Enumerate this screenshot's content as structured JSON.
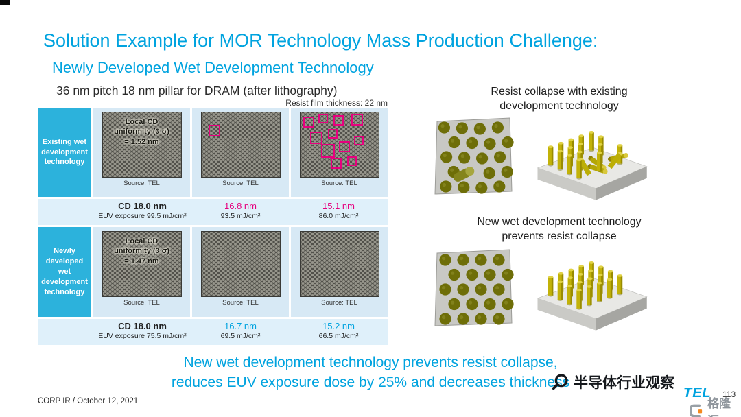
{
  "colors": {
    "accent_cyan": "#00A3DF",
    "sidebar_cyan": "#2CB2DC",
    "magenta": "#E6007E",
    "table_bg_light": "#d7e9f5",
    "data_band_bg": "#dff0fa",
    "pillar_yellow": "#c2b208"
  },
  "header": {
    "title": "Solution Example for MOR Technology Mass Production Challenge:",
    "subtitle": "Newly Developed Wet Development Technology"
  },
  "left_section": {
    "heading": "36 nm pitch 18 nm pillar for DRAM (after lithography)",
    "note": "Resist film thickness: 22 nm"
  },
  "table": {
    "groups": [
      {
        "label": "Existing wet development technology",
        "overlay": "Local CD\nuniformity (3 σ)\n= 1.52 nm",
        "source": "Source: TEL",
        "cells": [
          {
            "value": "CD 18.0 nm",
            "dose": "EUV exposure 99.5 mJ/cm²"
          },
          {
            "value": "16.8 nm",
            "dose": "93.5 mJ/cm²"
          },
          {
            "value": "15.1 nm",
            "dose": "86.0 mJ/cm²"
          }
        ]
      },
      {
        "label": "Newly developed wet development technology",
        "overlay": "Local CD\nuniformity (3 σ)\n= 1.47 nm",
        "source": "Source: TEL",
        "cells": [
          {
            "value": "CD 18.0 nm",
            "dose": "EUV exposure 75.5 mJ/cm²"
          },
          {
            "value": "16.7 nm",
            "dose": "69.5 mJ/cm²"
          },
          {
            "value": "15.2 nm",
            "dose": "66.5 mJ/cm²"
          }
        ]
      }
    ]
  },
  "right_panel": {
    "caption_top": "Resist collapse with existing\ndevelopment technology",
    "caption_bottom": "New wet development technology\nprevents resist collapse"
  },
  "conclusion": {
    "line1": "New wet development technology prevents resist collapse,",
    "line2": "reduces EUV exposure dose by 25% and decreases thickness"
  },
  "footer": {
    "left_text": "CORP IR / October 12, 2021",
    "tel": "TEL",
    "page": "113"
  },
  "watermarks": {
    "observer": "半导体行业观察",
    "gelonghui": "格隆汇"
  }
}
